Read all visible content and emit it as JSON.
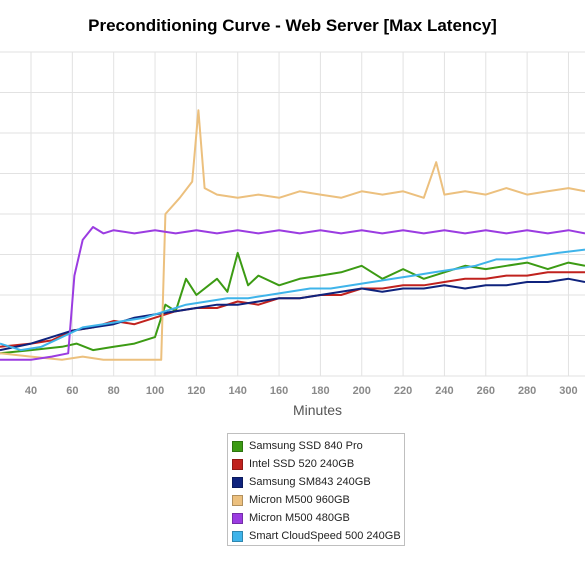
{
  "chart_data": {
    "type": "line",
    "title": "Preconditioning Curve - Web Server [Max Latency]",
    "xlabel": "Minutes",
    "ylabel": "",
    "xlim": [
      25,
      308
    ],
    "ylim": [
      0,
      1
    ],
    "x_ticks": [
      40,
      60,
      80,
      100,
      120,
      140,
      160,
      180,
      200,
      220,
      240,
      260,
      280,
      300
    ],
    "grid": true,
    "legend_position": "bottom",
    "series": [
      {
        "name": "Samsung SSD 840 Pro",
        "color": "#3c9b14",
        "points": [
          [
            25,
            0.07
          ],
          [
            40,
            0.08
          ],
          [
            55,
            0.09
          ],
          [
            62,
            0.1
          ],
          [
            70,
            0.08
          ],
          [
            80,
            0.09
          ],
          [
            90,
            0.1
          ],
          [
            100,
            0.12
          ],
          [
            105,
            0.22
          ],
          [
            110,
            0.2
          ],
          [
            115,
            0.3
          ],
          [
            120,
            0.25
          ],
          [
            130,
            0.3
          ],
          [
            135,
            0.26
          ],
          [
            140,
            0.38
          ],
          [
            145,
            0.28
          ],
          [
            150,
            0.31
          ],
          [
            160,
            0.28
          ],
          [
            170,
            0.3
          ],
          [
            180,
            0.31
          ],
          [
            190,
            0.32
          ],
          [
            200,
            0.34
          ],
          [
            210,
            0.3
          ],
          [
            220,
            0.33
          ],
          [
            230,
            0.3
          ],
          [
            240,
            0.32
          ],
          [
            250,
            0.34
          ],
          [
            260,
            0.33
          ],
          [
            270,
            0.34
          ],
          [
            280,
            0.35
          ],
          [
            290,
            0.33
          ],
          [
            300,
            0.35
          ],
          [
            308,
            0.34
          ]
        ]
      },
      {
        "name": "Intel SSD 520 240GB",
        "color": "#c0221e",
        "points": [
          [
            25,
            0.09
          ],
          [
            40,
            0.1
          ],
          [
            50,
            0.11
          ],
          [
            60,
            0.14
          ],
          [
            70,
            0.15
          ],
          [
            80,
            0.17
          ],
          [
            90,
            0.16
          ],
          [
            100,
            0.18
          ],
          [
            110,
            0.2
          ],
          [
            120,
            0.21
          ],
          [
            130,
            0.21
          ],
          [
            140,
            0.23
          ],
          [
            150,
            0.22
          ],
          [
            160,
            0.24
          ],
          [
            170,
            0.24
          ],
          [
            180,
            0.25
          ],
          [
            190,
            0.25
          ],
          [
            200,
            0.27
          ],
          [
            210,
            0.27
          ],
          [
            220,
            0.28
          ],
          [
            230,
            0.28
          ],
          [
            240,
            0.29
          ],
          [
            250,
            0.3
          ],
          [
            260,
            0.3
          ],
          [
            270,
            0.31
          ],
          [
            280,
            0.31
          ],
          [
            290,
            0.32
          ],
          [
            300,
            0.32
          ],
          [
            308,
            0.32
          ]
        ]
      },
      {
        "name": "Samsung SM843 240GB",
        "color": "#0f237d",
        "points": [
          [
            25,
            0.08
          ],
          [
            40,
            0.1
          ],
          [
            50,
            0.12
          ],
          [
            60,
            0.14
          ],
          [
            70,
            0.15
          ],
          [
            80,
            0.16
          ],
          [
            90,
            0.18
          ],
          [
            100,
            0.19
          ],
          [
            110,
            0.2
          ],
          [
            120,
            0.21
          ],
          [
            130,
            0.22
          ],
          [
            140,
            0.22
          ],
          [
            150,
            0.23
          ],
          [
            160,
            0.24
          ],
          [
            170,
            0.24
          ],
          [
            180,
            0.25
          ],
          [
            190,
            0.26
          ],
          [
            200,
            0.27
          ],
          [
            210,
            0.26
          ],
          [
            220,
            0.27
          ],
          [
            230,
            0.27
          ],
          [
            240,
            0.28
          ],
          [
            250,
            0.27
          ],
          [
            260,
            0.28
          ],
          [
            270,
            0.28
          ],
          [
            280,
            0.29
          ],
          [
            290,
            0.29
          ],
          [
            300,
            0.3
          ],
          [
            308,
            0.29
          ]
        ]
      },
      {
        "name": "Micron M500 960GB",
        "color": "#ecc07e",
        "points": [
          [
            25,
            0.07
          ],
          [
            40,
            0.06
          ],
          [
            55,
            0.05
          ],
          [
            65,
            0.06
          ],
          [
            75,
            0.05
          ],
          [
            85,
            0.05
          ],
          [
            95,
            0.05
          ],
          [
            103,
            0.05
          ],
          [
            105,
            0.5
          ],
          [
            112,
            0.55
          ],
          [
            118,
            0.6
          ],
          [
            121,
            0.82
          ],
          [
            124,
            0.58
          ],
          [
            130,
            0.56
          ],
          [
            140,
            0.55
          ],
          [
            150,
            0.56
          ],
          [
            160,
            0.55
          ],
          [
            170,
            0.57
          ],
          [
            180,
            0.56
          ],
          [
            190,
            0.55
          ],
          [
            200,
            0.57
          ],
          [
            210,
            0.56
          ],
          [
            220,
            0.57
          ],
          [
            230,
            0.55
          ],
          [
            236,
            0.66
          ],
          [
            240,
            0.56
          ],
          [
            250,
            0.57
          ],
          [
            260,
            0.56
          ],
          [
            270,
            0.58
          ],
          [
            280,
            0.56
          ],
          [
            290,
            0.57
          ],
          [
            300,
            0.58
          ],
          [
            308,
            0.57
          ]
        ]
      },
      {
        "name": "Micron M500 480GB",
        "color": "#9b3ce1",
        "points": [
          [
            25,
            0.05
          ],
          [
            40,
            0.05
          ],
          [
            50,
            0.06
          ],
          [
            58,
            0.07
          ],
          [
            61,
            0.31
          ],
          [
            65,
            0.42
          ],
          [
            70,
            0.46
          ],
          [
            75,
            0.44
          ],
          [
            80,
            0.45
          ],
          [
            90,
            0.44
          ],
          [
            100,
            0.45
          ],
          [
            110,
            0.44
          ],
          [
            120,
            0.45
          ],
          [
            130,
            0.44
          ],
          [
            140,
            0.45
          ],
          [
            150,
            0.44
          ],
          [
            160,
            0.45
          ],
          [
            170,
            0.44
          ],
          [
            180,
            0.45
          ],
          [
            190,
            0.44
          ],
          [
            200,
            0.45
          ],
          [
            210,
            0.44
          ],
          [
            220,
            0.45
          ],
          [
            230,
            0.44
          ],
          [
            240,
            0.45
          ],
          [
            250,
            0.44
          ],
          [
            260,
            0.45
          ],
          [
            270,
            0.44
          ],
          [
            280,
            0.45
          ],
          [
            290,
            0.44
          ],
          [
            300,
            0.45
          ],
          [
            308,
            0.44
          ]
        ]
      },
      {
        "name": "Smart CloudSpeed 500 240GB",
        "color": "#3fb4ea",
        "points": [
          [
            25,
            0.1
          ],
          [
            35,
            0.08
          ],
          [
            45,
            0.09
          ],
          [
            55,
            0.12
          ],
          [
            65,
            0.15
          ],
          [
            75,
            0.16
          ],
          [
            85,
            0.17
          ],
          [
            95,
            0.18
          ],
          [
            105,
            0.2
          ],
          [
            115,
            0.22
          ],
          [
            125,
            0.23
          ],
          [
            135,
            0.24
          ],
          [
            145,
            0.24
          ],
          [
            155,
            0.25
          ],
          [
            165,
            0.26
          ],
          [
            175,
            0.27
          ],
          [
            185,
            0.27
          ],
          [
            195,
            0.28
          ],
          [
            205,
            0.29
          ],
          [
            215,
            0.3
          ],
          [
            225,
            0.31
          ],
          [
            235,
            0.32
          ],
          [
            245,
            0.33
          ],
          [
            255,
            0.34
          ],
          [
            265,
            0.36
          ],
          [
            275,
            0.36
          ],
          [
            285,
            0.37
          ],
          [
            295,
            0.38
          ],
          [
            308,
            0.39
          ]
        ]
      }
    ]
  }
}
